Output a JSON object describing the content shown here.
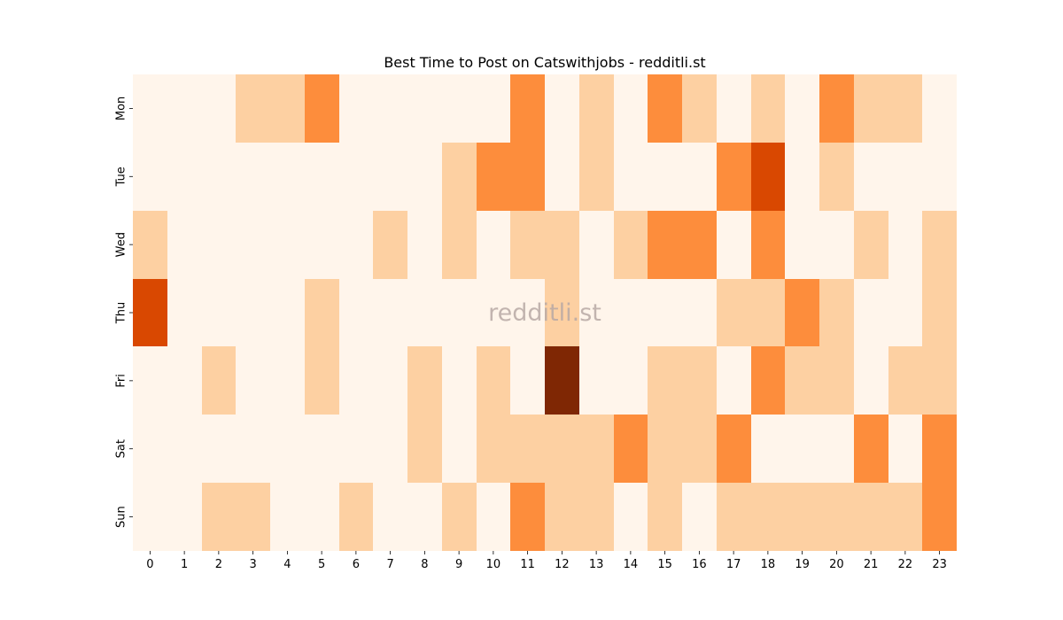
{
  "chart_data": {
    "type": "heatmap",
    "title": "Best Time to Post on Catswithjobs - redditli.st",
    "watermark": "redditli.st",
    "x_categories": [
      "0",
      "1",
      "2",
      "3",
      "4",
      "5",
      "6",
      "7",
      "8",
      "9",
      "10",
      "11",
      "12",
      "13",
      "14",
      "15",
      "16",
      "17",
      "18",
      "19",
      "20",
      "21",
      "22",
      "23"
    ],
    "y_categories": [
      "Mon",
      "Tue",
      "Wed",
      "Thu",
      "Fri",
      "Sat",
      "Sun"
    ],
    "value_range": [
      0,
      4
    ],
    "colormap": "Oranges",
    "level_colors": [
      "#fff5eb",
      "#fdd0a2",
      "#fd8d3c",
      "#d94801",
      "#7f2704"
    ],
    "values": [
      [
        0,
        0,
        0,
        1,
        1,
        2,
        0,
        0,
        0,
        0,
        0,
        2,
        0,
        1,
        0,
        2,
        1,
        0,
        1,
        0,
        2,
        1,
        1,
        0
      ],
      [
        0,
        0,
        0,
        0,
        0,
        0,
        0,
        0,
        0,
        1,
        2,
        2,
        0,
        1,
        0,
        0,
        0,
        2,
        3,
        0,
        1,
        0,
        0,
        0
      ],
      [
        1,
        0,
        0,
        0,
        0,
        0,
        0,
        1,
        0,
        1,
        0,
        1,
        1,
        0,
        1,
        2,
        2,
        0,
        2,
        0,
        0,
        1,
        0,
        1
      ],
      [
        3,
        0,
        0,
        0,
        0,
        1,
        0,
        0,
        0,
        0,
        0,
        0,
        1,
        0,
        0,
        0,
        0,
        1,
        1,
        2,
        1,
        0,
        0,
        1
      ],
      [
        0,
        0,
        1,
        0,
        0,
        1,
        0,
        0,
        1,
        0,
        1,
        0,
        4,
        0,
        0,
        1,
        1,
        0,
        2,
        1,
        1,
        0,
        1,
        1
      ],
      [
        0,
        0,
        0,
        0,
        0,
        0,
        0,
        0,
        1,
        0,
        1,
        1,
        1,
        1,
        2,
        1,
        1,
        2,
        0,
        0,
        0,
        2,
        0,
        2
      ],
      [
        0,
        0,
        1,
        1,
        0,
        0,
        1,
        0,
        0,
        1,
        0,
        2,
        1,
        1,
        0,
        1,
        0,
        1,
        1,
        1,
        1,
        1,
        1,
        2
      ]
    ]
  }
}
